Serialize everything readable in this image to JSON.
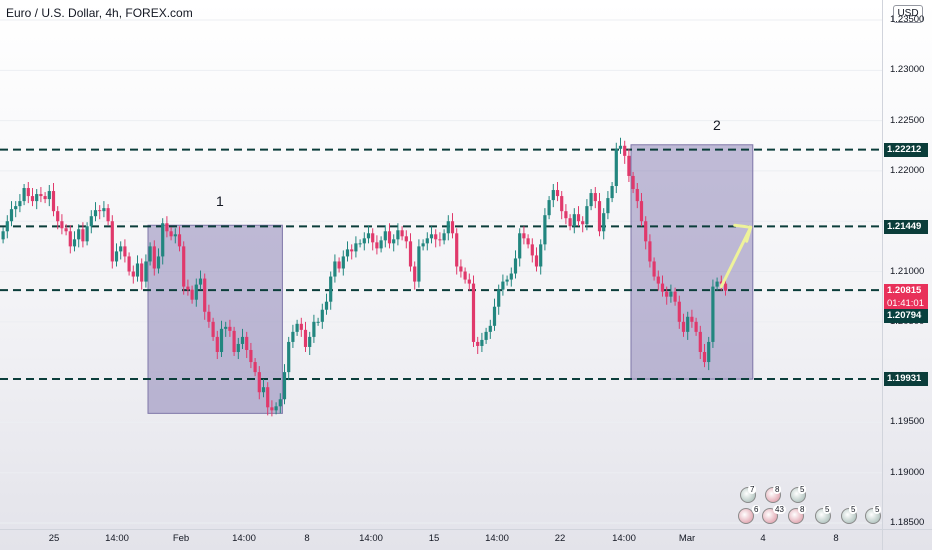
{
  "header": {
    "title": "Euro / U.S. Dollar, 4h, FOREX.com",
    "currency": "USD"
  },
  "price_tags": {
    "res_high": "1.22212",
    "res_mid": "1.21449",
    "last_price": "1.20815",
    "countdown": "01:41:01",
    "prev_close": "1.20794",
    "support": "1.19931"
  },
  "annotations": {
    "box1": "1",
    "box2": "2"
  },
  "colors": {
    "up": "#22867f",
    "down": "#e0396b",
    "box": "rgba(112,100,165,0.42)",
    "arrow": "#eef29a",
    "line": "#0b3d3a"
  },
  "events": {
    "top_counts": [
      "7",
      "8",
      "5"
    ],
    "bottom_counts": [
      "6",
      "43",
      "8",
      "5",
      "5",
      "5"
    ]
  },
  "chart_data": {
    "type": "candlestick",
    "title": "Euro / U.S. Dollar, 4h, FOREX.com",
    "currency": "USD",
    "ylim": [
      1.185,
      1.2356
    ],
    "y_ticks": [
      "1.18500",
      "1.19000",
      "1.19500",
      "1.20000",
      "1.20500",
      "1.21000",
      "1.21500",
      "1.22000",
      "1.22500",
      "1.23000",
      "1.23500"
    ],
    "x_ticks": [
      "25",
      "14:00",
      "Feb",
      "14:00",
      "8",
      "14:00",
      "15",
      "14:00",
      "22",
      "14:00",
      "Mar",
      "4",
      "8"
    ],
    "horizontal_levels": [
      1.22212,
      1.21449,
      1.20815,
      1.19931
    ],
    "rectangles": [
      {
        "label": "1",
        "x_from_bar": 35,
        "x_to_bar": 66,
        "y_from": 1.2146,
        "y_to": 1.1959
      },
      {
        "label": "2",
        "x_from_bar": 150,
        "x_to_bar": 178,
        "y_from": 1.2226,
        "y_to": 1.1993
      }
    ],
    "arrow": {
      "from_bar": 171,
      "from_price": 1.2085,
      "to_bar": 178,
      "to_price": 1.2144
    },
    "current_price": 1.20815,
    "previous_close": 1.20794,
    "candle_closes": [
      1.214,
      1.215,
      1.2162,
      1.2165,
      1.217,
      1.2183,
      1.2175,
      1.217,
      1.2177,
      1.2175,
      1.2172,
      1.218,
      1.216,
      1.215,
      1.2143,
      1.214,
      1.2125,
      1.2132,
      1.2142,
      1.213,
      1.2145,
      1.2155,
      1.2161,
      1.216,
      1.2163,
      1.215,
      1.211,
      1.212,
      1.2125,
      1.2115,
      1.21,
      1.2095,
      1.2108,
      1.209,
      1.211,
      1.2125,
      1.2103,
      1.2115,
      1.2148,
      1.214,
      1.2135,
      1.2137,
      1.2125,
      1.2085,
      1.2082,
      1.2072,
      1.2087,
      1.2093,
      1.206,
      1.205,
      1.2035,
      1.202,
      1.2043,
      1.2045,
      1.2041,
      1.202,
      1.2028,
      1.2035,
      1.2022,
      1.201,
      1.2,
      1.198,
      1.1985,
      1.1965,
      1.1962,
      1.1966,
      1.1973,
      1.2,
      1.203,
      1.204,
      1.2048,
      1.2042,
      1.2025,
      1.2035,
      1.205,
      1.205,
      1.2062,
      1.207,
      1.2095,
      1.211,
      1.2103,
      1.2115,
      1.2122,
      1.212,
      1.2128,
      1.2128,
      1.2133,
      1.2138,
      1.2129,
      1.2123,
      1.2131,
      1.214,
      1.2128,
      1.2132,
      1.2141,
      1.2135,
      1.213,
      1.2105,
      1.209,
      1.2125,
      1.2128,
      1.2133,
      1.2137,
      1.2132,
      1.2131,
      1.2138,
      1.215,
      1.2138,
      1.2105,
      1.21,
      1.2092,
      1.2088,
      1.203,
      1.2026,
      1.2032,
      1.204,
      1.2046,
      1.2065,
      1.2082,
      1.209,
      1.2092,
      1.2098,
      1.2113,
      1.2138,
      1.2133,
      1.2127,
      1.2116,
      1.2105,
      1.2127,
      1.2156,
      1.2171,
      1.2181,
      1.2175,
      1.216,
      1.2153,
      1.2145,
      1.2157,
      1.215,
      1.2147,
      1.2165,
      1.2178,
      1.217,
      1.214,
      1.2158,
      1.2173,
      1.2185,
      1.2222,
      1.2225,
      1.2215,
      1.2195,
      1.2182,
      1.217,
      1.215,
      1.213,
      1.211,
      1.2095,
      1.2088,
      1.208,
      1.2075,
      1.208,
      1.207,
      1.205,
      1.204,
      1.2055,
      1.205,
      1.204,
      1.202,
      1.201,
      1.203,
      1.2085,
      1.209,
      1.2088,
      1.2081
    ]
  }
}
